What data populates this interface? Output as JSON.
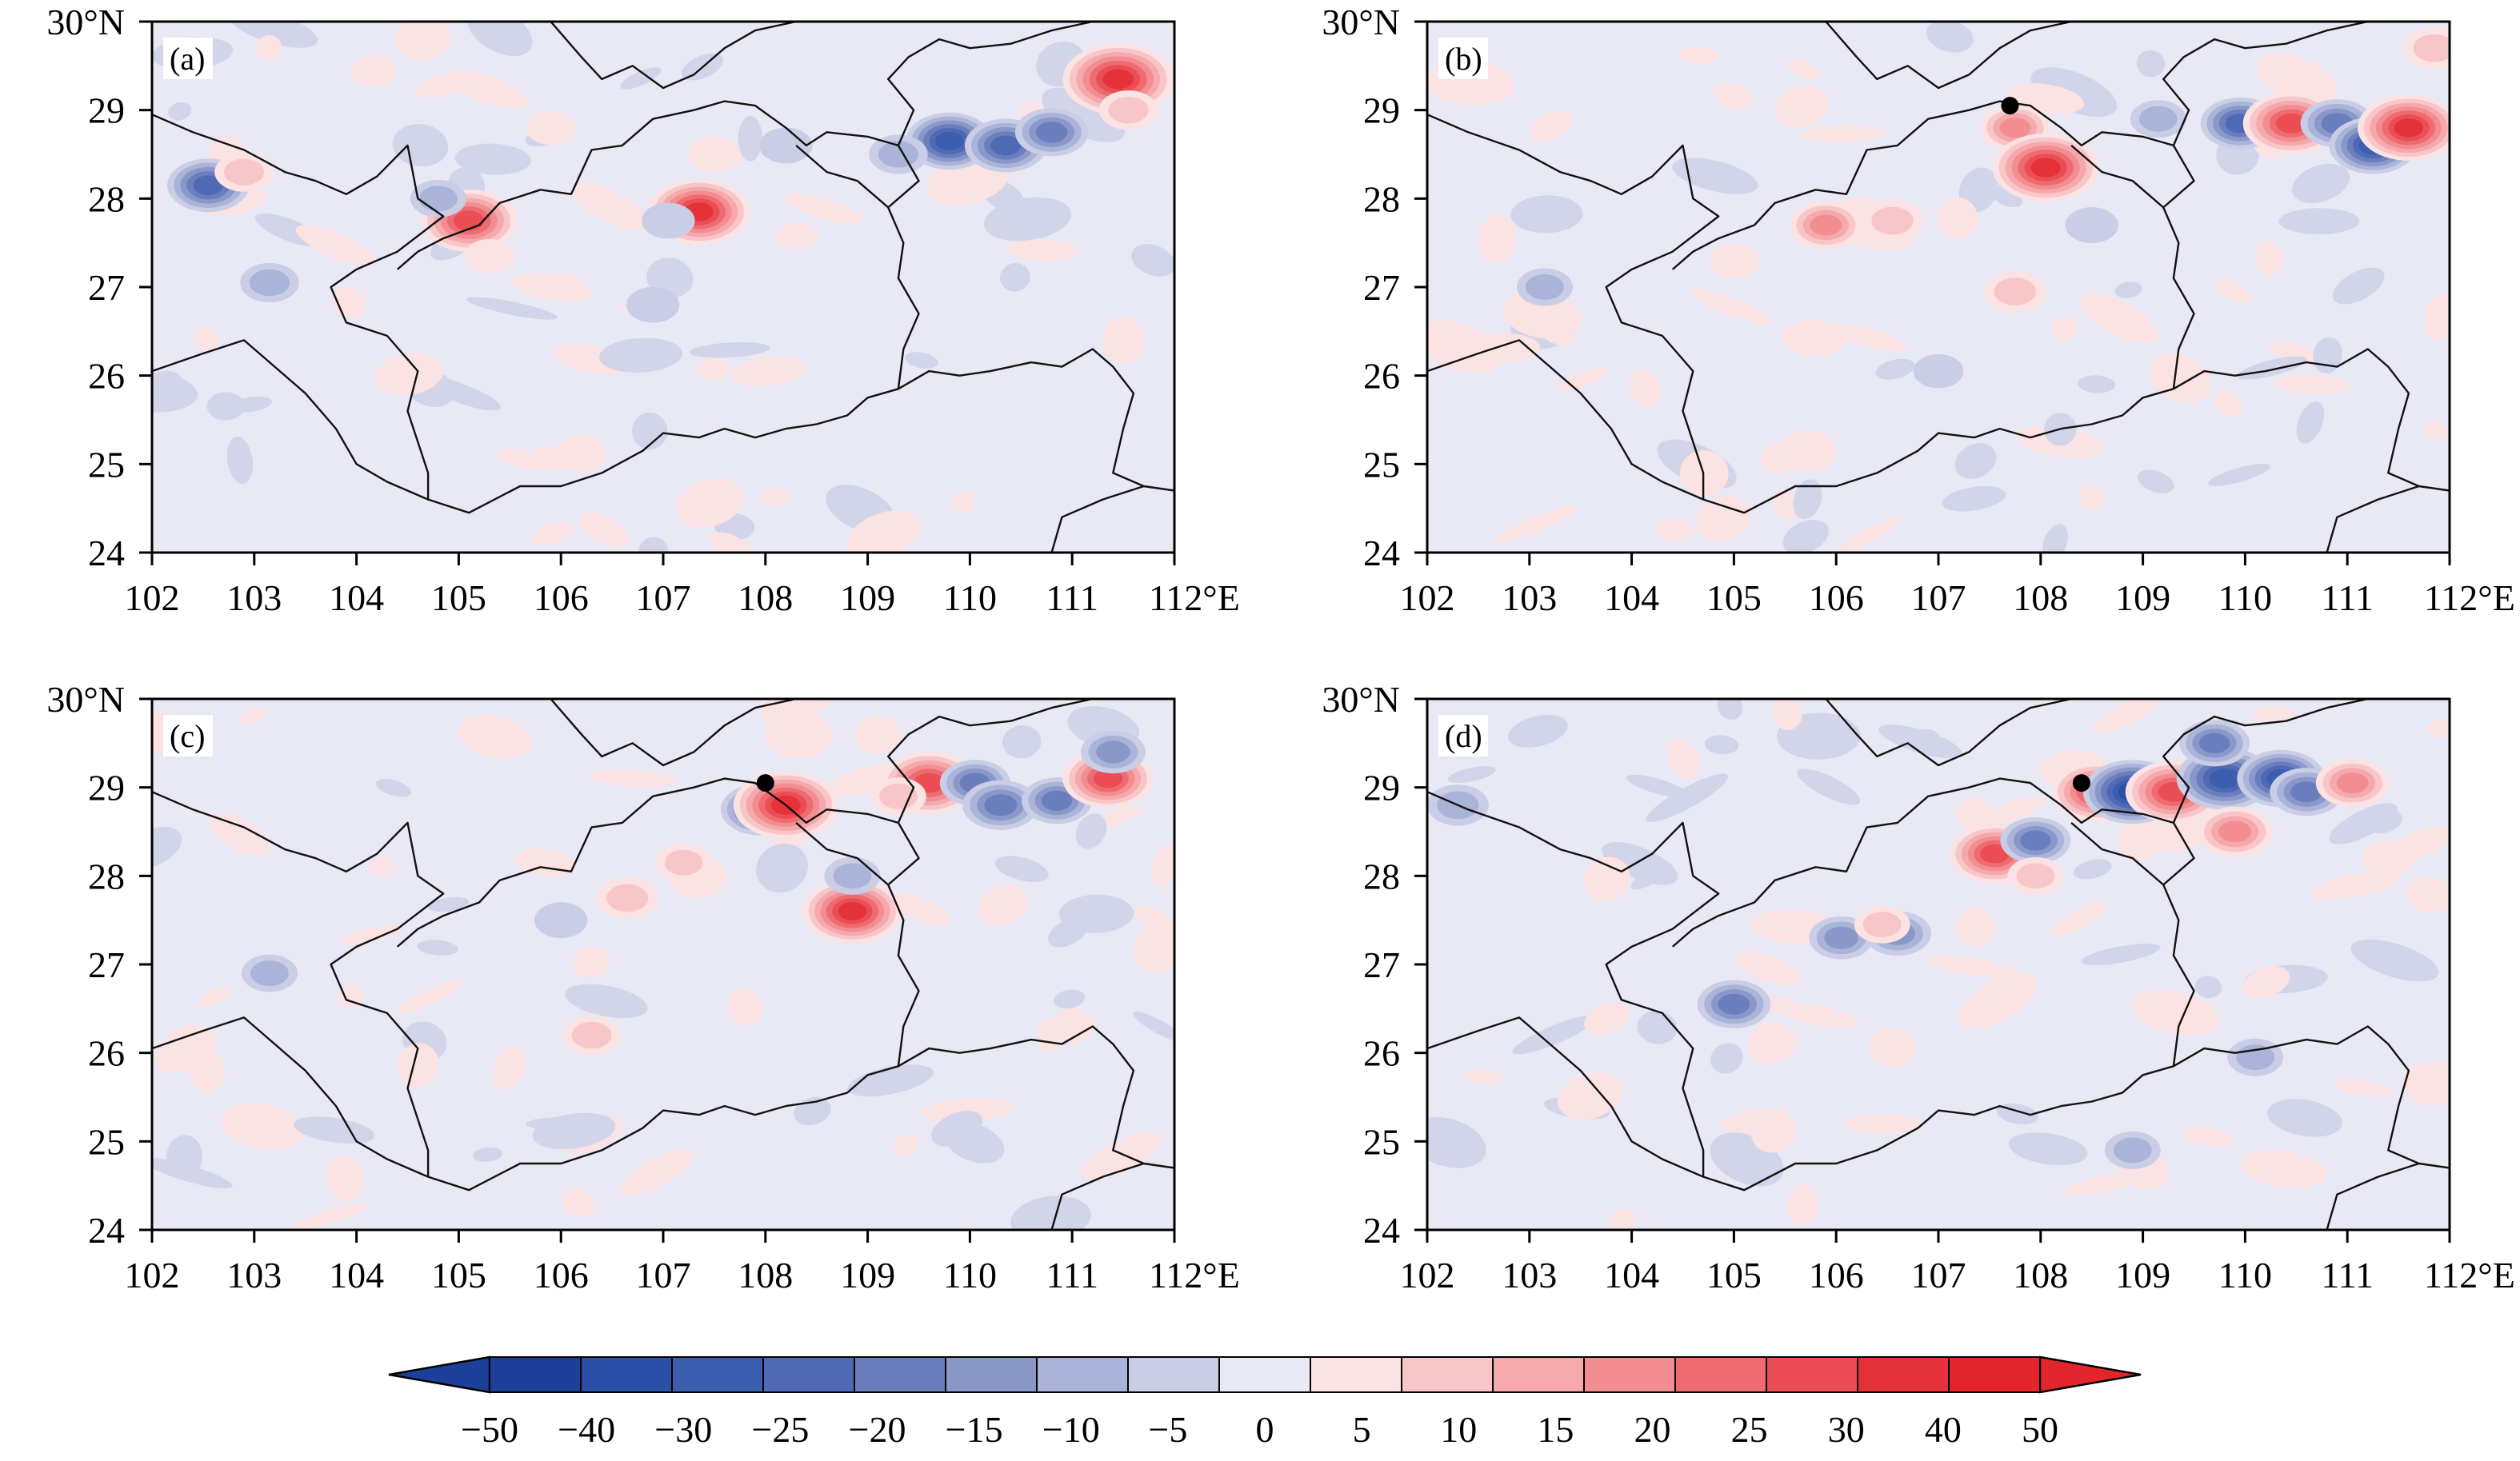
{
  "panels": [
    {
      "label": "(a)",
      "station": null,
      "blobs": [
        {
          "lon": 102.55,
          "lat": 28.15,
          "v": -28
        },
        {
          "lon": 102.9,
          "lat": 28.3,
          "v": 12
        },
        {
          "lon": 103.15,
          "lat": 27.05,
          "v": -12
        },
        {
          "lon": 105.1,
          "lat": 27.75,
          "v": 38
        },
        {
          "lon": 104.8,
          "lat": 28.0,
          "v": -10
        },
        {
          "lon": 107.35,
          "lat": 27.85,
          "v": 42
        },
        {
          "lon": 107.05,
          "lat": 27.75,
          "v": -8
        },
        {
          "lon": 107.5,
          "lat": 28.5,
          "v": 8
        },
        {
          "lon": 108.2,
          "lat": 28.6,
          "v": -8
        },
        {
          "lon": 109.8,
          "lat": 28.65,
          "v": -32
        },
        {
          "lon": 110.35,
          "lat": 28.6,
          "v": -28
        },
        {
          "lon": 110.8,
          "lat": 28.75,
          "v": -22
        },
        {
          "lon": 111.45,
          "lat": 29.35,
          "v": 48
        },
        {
          "lon": 111.55,
          "lat": 29.0,
          "v": 12
        },
        {
          "lon": 109.3,
          "lat": 28.5,
          "v": -12
        },
        {
          "lon": 105.3,
          "lat": 27.35,
          "v": 6
        },
        {
          "lon": 106.9,
          "lat": 26.8,
          "v": -8
        },
        {
          "lon": 105.9,
          "lat": 28.8,
          "v": 6
        }
      ]
    },
    {
      "label": "(b)",
      "station": {
        "lon": 107.7,
        "lat": 29.05
      },
      "blobs": [
        {
          "lon": 105.9,
          "lat": 27.7,
          "v": 22
        },
        {
          "lon": 106.55,
          "lat": 27.75,
          "v": 14
        },
        {
          "lon": 107.75,
          "lat": 28.8,
          "v": 20
        },
        {
          "lon": 108.05,
          "lat": 28.35,
          "v": 45
        },
        {
          "lon": 107.75,
          "lat": 26.95,
          "v": 14
        },
        {
          "lon": 109.95,
          "lat": 28.85,
          "v": -26
        },
        {
          "lon": 110.45,
          "lat": 28.85,
          "v": 38
        },
        {
          "lon": 110.9,
          "lat": 28.85,
          "v": -22
        },
        {
          "lon": 111.25,
          "lat": 28.6,
          "v": -32
        },
        {
          "lon": 111.6,
          "lat": 28.8,
          "v": 42
        },
        {
          "lon": 111.85,
          "lat": 29.7,
          "v": 14
        },
        {
          "lon": 103.15,
          "lat": 27.0,
          "v": -10
        },
        {
          "lon": 107.0,
          "lat": 26.05,
          "v": -6
        },
        {
          "lon": 108.5,
          "lat": 27.7,
          "v": -8
        },
        {
          "lon": 109.15,
          "lat": 28.9,
          "v": -10
        },
        {
          "lon": 105.0,
          "lat": 27.3,
          "v": 6
        }
      ]
    },
    {
      "label": "(c)",
      "station": {
        "lon": 108.0,
        "lat": 29.05
      },
      "blobs": [
        {
          "lon": 107.95,
          "lat": 28.75,
          "v": -26
        },
        {
          "lon": 108.2,
          "lat": 28.8,
          "v": 44
        },
        {
          "lon": 108.85,
          "lat": 27.6,
          "v": 40
        },
        {
          "lon": 108.85,
          "lat": 28.0,
          "v": -10
        },
        {
          "lon": 106.65,
          "lat": 27.75,
          "v": 14
        },
        {
          "lon": 107.2,
          "lat": 28.15,
          "v": 10
        },
        {
          "lon": 109.6,
          "lat": 29.05,
          "v": 38
        },
        {
          "lon": 110.05,
          "lat": 29.05,
          "v": -20
        },
        {
          "lon": 110.3,
          "lat": 28.8,
          "v": -24
        },
        {
          "lon": 110.85,
          "lat": 28.85,
          "v": -20
        },
        {
          "lon": 111.35,
          "lat": 29.1,
          "v": 34
        },
        {
          "lon": 111.4,
          "lat": 29.4,
          "v": -16
        },
        {
          "lon": 106.3,
          "lat": 26.2,
          "v": 12
        },
        {
          "lon": 103.15,
          "lat": 26.9,
          "v": -10
        },
        {
          "lon": 109.3,
          "lat": 28.9,
          "v": 10
        },
        {
          "lon": 106.0,
          "lat": 27.5,
          "v": -8
        }
      ]
    },
    {
      "label": "(d)",
      "station": {
        "lon": 108.4,
        "lat": 29.05
      },
      "blobs": [
        {
          "lon": 108.55,
          "lat": 28.95,
          "v": 34
        },
        {
          "lon": 108.9,
          "lat": 28.95,
          "v": -40
        },
        {
          "lon": 109.3,
          "lat": 28.95,
          "v": 38
        },
        {
          "lon": 109.8,
          "lat": 29.1,
          "v": -38
        },
        {
          "lon": 110.35,
          "lat": 29.1,
          "v": -32
        },
        {
          "lon": 110.6,
          "lat": 28.95,
          "v": -22
        },
        {
          "lon": 111.05,
          "lat": 29.05,
          "v": 22
        },
        {
          "lon": 109.9,
          "lat": 28.5,
          "v": 24
        },
        {
          "lon": 107.55,
          "lat": 28.25,
          "v": 34
        },
        {
          "lon": 107.95,
          "lat": 28.4,
          "v": -20
        },
        {
          "lon": 107.95,
          "lat": 28.0,
          "v": 10
        },
        {
          "lon": 106.6,
          "lat": 27.35,
          "v": -18
        },
        {
          "lon": 106.05,
          "lat": 27.3,
          "v": -16
        },
        {
          "lon": 105.0,
          "lat": 26.55,
          "v": -22
        },
        {
          "lon": 109.7,
          "lat": 29.5,
          "v": -20
        },
        {
          "lon": 110.1,
          "lat": 25.95,
          "v": -10
        },
        {
          "lon": 108.9,
          "lat": 24.9,
          "v": -10
        },
        {
          "lon": 102.3,
          "lat": 28.8,
          "v": -14
        },
        {
          "lon": 106.45,
          "lat": 27.45,
          "v": 10
        },
        {
          "lon": 111.4,
          "lat": 28.2,
          "v": 8
        }
      ]
    }
  ],
  "x_ticks": [
    102,
    103,
    104,
    105,
    106,
    107,
    108,
    109,
    110,
    111,
    112
  ],
  "y_ticks": [
    24,
    25,
    26,
    27,
    28,
    29,
    30
  ],
  "x_tick_labels": [
    "102",
    "103",
    "104",
    "105",
    "106",
    "107",
    "108",
    "109",
    "110",
    "111",
    "112°E"
  ],
  "y_tick_labels": [
    "24",
    "25",
    "26",
    "27",
    "28",
    "29",
    "30°N"
  ],
  "lon_range": [
    102,
    112
  ],
  "lat_range": [
    24,
    30
  ],
  "colorbar": {
    "levels": [
      -50,
      -40,
      -30,
      -25,
      -20,
      -15,
      -10,
      -5,
      0,
      5,
      10,
      15,
      20,
      25,
      30,
      40,
      50
    ],
    "labels": [
      "−50",
      "−40",
      "−30",
      "−25",
      "−20",
      "−15",
      "−10",
      "−5",
      "0",
      "5",
      "10",
      "15",
      "20",
      "25",
      "30",
      "40",
      "50"
    ],
    "colors": [
      "#1c3f99",
      "#2a4fa6",
      "#3b5fae",
      "#5069b4",
      "#6a7dbd",
      "#8a97c9",
      "#aab4d8",
      "#c9cde6",
      "#e9e9f5",
      "#fbe2e3",
      "#f8c6c8",
      "#f5a9ac",
      "#f28d91",
      "#ee6c71",
      "#ea4e54",
      "#e53238",
      "#e2262b"
    ],
    "extend": "both"
  }
}
